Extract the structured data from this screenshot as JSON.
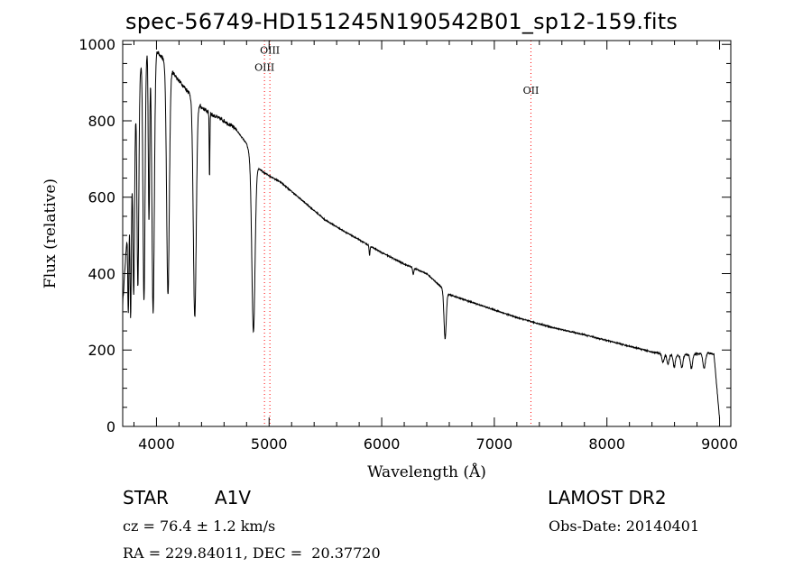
{
  "header": {
    "title": "spec-56749-HD151245N190542B01_sp12-159.fits"
  },
  "info": {
    "object_class": "STAR",
    "object_subclass": "A1V",
    "survey": "LAMOST DR2",
    "redshift_text": "cz = 76.4 ± 1.2 km/s",
    "obs_date_text": "Obs-Date: 20140401",
    "coords_text": "RA = 229.84011, DEC =  20.37720"
  },
  "chart_data": {
    "type": "line",
    "title": "spec-56749-HD151245N190542B01_sp12-159.fits",
    "xlabel": "Wavelength (Å)",
    "ylabel": "Flux (relative)",
    "xlim": [
      3700,
      9100
    ],
    "ylim": [
      0,
      1010
    ],
    "grid": false,
    "xticks": [
      4000,
      5000,
      6000,
      7000,
      8000,
      9000
    ],
    "yticks": [
      0,
      200,
      400,
      600,
      800,
      1000
    ],
    "line_color": "#000000",
    "marker_color": "#ff0000",
    "continuum": [
      [
        3700,
        320
      ],
      [
        3760,
        600
      ],
      [
        3820,
        860
      ],
      [
        3870,
        960
      ],
      [
        3920,
        985
      ],
      [
        3960,
        1000
      ],
      [
        4000,
        985
      ],
      [
        4100,
        945
      ],
      [
        4200,
        905
      ],
      [
        4300,
        870
      ],
      [
        4400,
        835
      ],
      [
        4500,
        815
      ],
      [
        4600,
        800
      ],
      [
        4700,
        780
      ],
      [
        4800,
        740
      ],
      [
        4850,
        690
      ],
      [
        4950,
        665
      ],
      [
        5100,
        640
      ],
      [
        5200,
        615
      ],
      [
        5400,
        565
      ],
      [
        5500,
        540
      ],
      [
        5700,
        505
      ],
      [
        6000,
        455
      ],
      [
        6200,
        425
      ],
      [
        6400,
        400
      ],
      [
        6600,
        345
      ],
      [
        6800,
        325
      ],
      [
        7000,
        305
      ],
      [
        7200,
        285
      ],
      [
        7500,
        260
      ],
      [
        7800,
        240
      ],
      [
        8000,
        225
      ],
      [
        8200,
        210
      ],
      [
        8400,
        195
      ],
      [
        8600,
        185
      ],
      [
        8800,
        190
      ],
      [
        8900,
        192
      ],
      [
        8950,
        190
      ],
      [
        9000,
        20
      ]
    ],
    "absorption_lines": [
      {
        "x": 3750,
        "depth": 260,
        "width": 5
      },
      {
        "x": 3771,
        "depth": 360,
        "width": 6
      },
      {
        "x": 3798,
        "depth": 420,
        "width": 7
      },
      {
        "x": 3835,
        "depth": 520,
        "width": 8
      },
      {
        "x": 3889,
        "depth": 640,
        "width": 9
      },
      {
        "x": 3933,
        "depth": 450,
        "width": 6
      },
      {
        "x": 3970,
        "depth": 700,
        "width": 11
      },
      {
        "x": 4102,
        "depth": 600,
        "width": 12
      },
      {
        "x": 4340,
        "depth": 570,
        "width": 13
      },
      {
        "x": 4471,
        "depth": 170,
        "width": 3
      },
      {
        "x": 4861,
        "depth": 440,
        "width": 14
      },
      {
        "x": 5892,
        "depth": 25,
        "width": 4
      },
      {
        "x": 6280,
        "depth": 18,
        "width": 5
      },
      {
        "x": 6563,
        "depth": 125,
        "width": 10
      },
      {
        "x": 8498,
        "depth": 22,
        "width": 10
      },
      {
        "x": 8542,
        "depth": 24,
        "width": 10
      },
      {
        "x": 8598,
        "depth": 30,
        "width": 9
      },
      {
        "x": 8665,
        "depth": 32,
        "width": 10
      },
      {
        "x": 8750,
        "depth": 36,
        "width": 10
      },
      {
        "x": 8863,
        "depth": 40,
        "width": 11
      }
    ],
    "line_markers": [
      {
        "label": "OIII",
        "x": 4959,
        "label_y": 940
      },
      {
        "label": "OIII",
        "x": 5007,
        "label_y": 985
      },
      {
        "label": "OII",
        "x": 7325,
        "label_y": 880
      }
    ]
  }
}
